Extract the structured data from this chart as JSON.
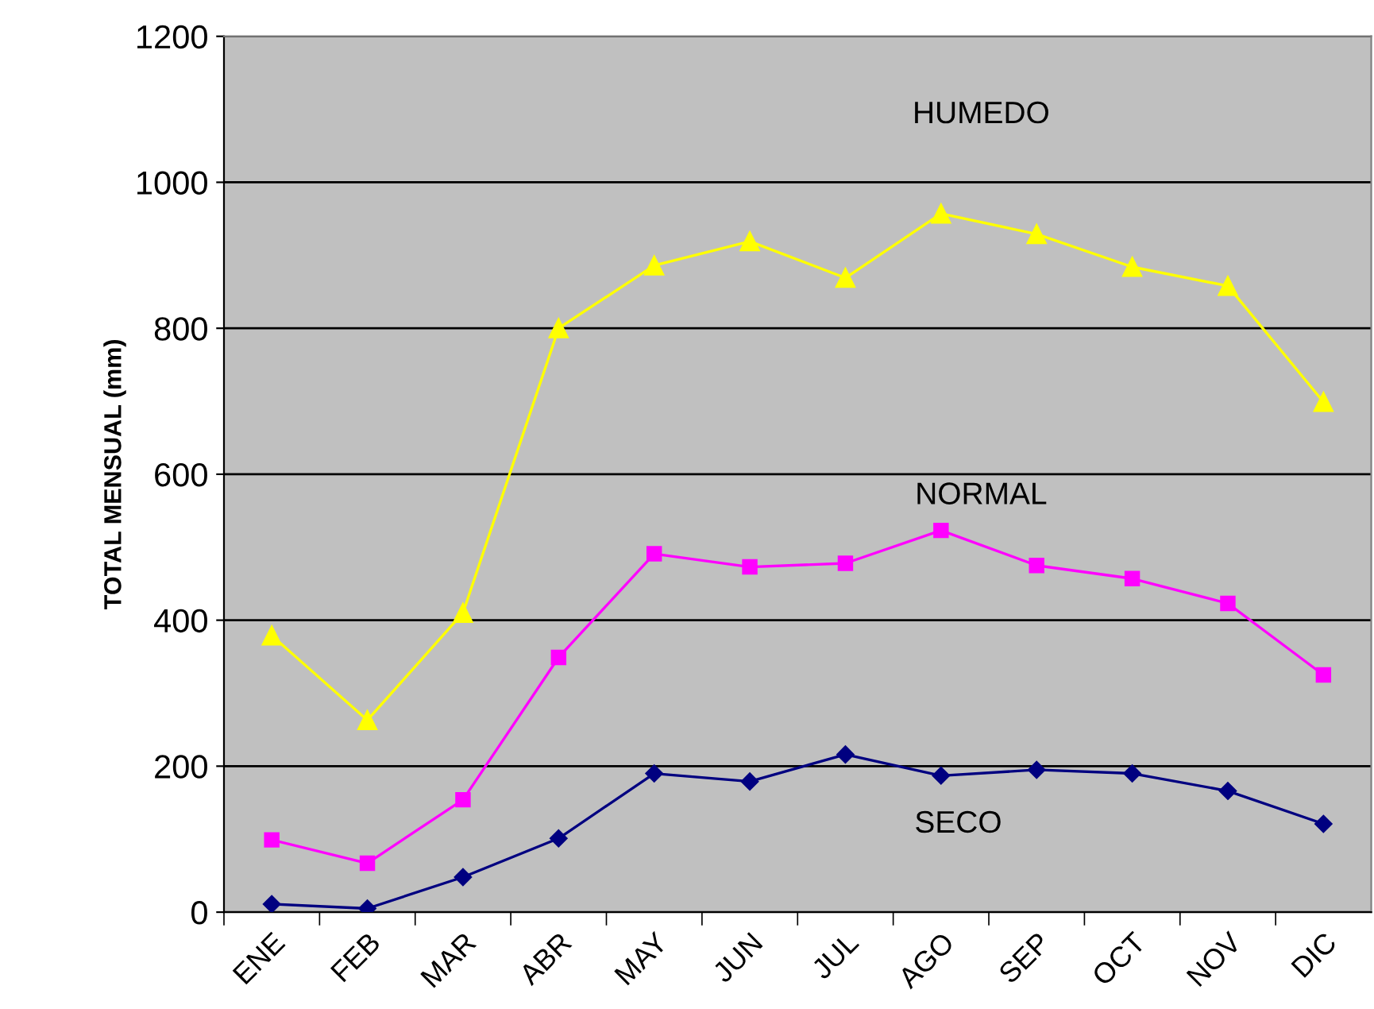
{
  "chart_data": {
    "type": "line",
    "ylabel": "TOTAL MENSUAL (mm)",
    "categories": [
      "ENE",
      "FEB",
      "MAR",
      "ABR",
      "MAY",
      "JUN",
      "JUL",
      "AGO",
      "SEP",
      "OCT",
      "NOV",
      "DIC"
    ],
    "series": [
      {
        "name": "HUMEDO",
        "color": "#ffff00",
        "marker": "triangle",
        "values": [
          379,
          263,
          410,
          800,
          886,
          919,
          869,
          957,
          929,
          884,
          858,
          699
        ]
      },
      {
        "name": "NORMAL",
        "color": "#ff00ff",
        "marker": "square",
        "values": [
          99,
          67,
          154,
          349,
          491,
          473,
          478,
          523,
          475,
          457,
          423,
          325
        ]
      },
      {
        "name": "SECO",
        "color": "#000080",
        "marker": "diamond",
        "values": [
          11,
          5,
          48,
          101,
          190,
          179,
          216,
          187,
          195,
          190,
          166,
          121
        ]
      }
    ],
    "ylim": [
      0,
      1200
    ],
    "yticks": [
      0,
      200,
      400,
      600,
      800,
      1000,
      1200
    ],
    "grid": "y",
    "line_style": "solid"
  }
}
